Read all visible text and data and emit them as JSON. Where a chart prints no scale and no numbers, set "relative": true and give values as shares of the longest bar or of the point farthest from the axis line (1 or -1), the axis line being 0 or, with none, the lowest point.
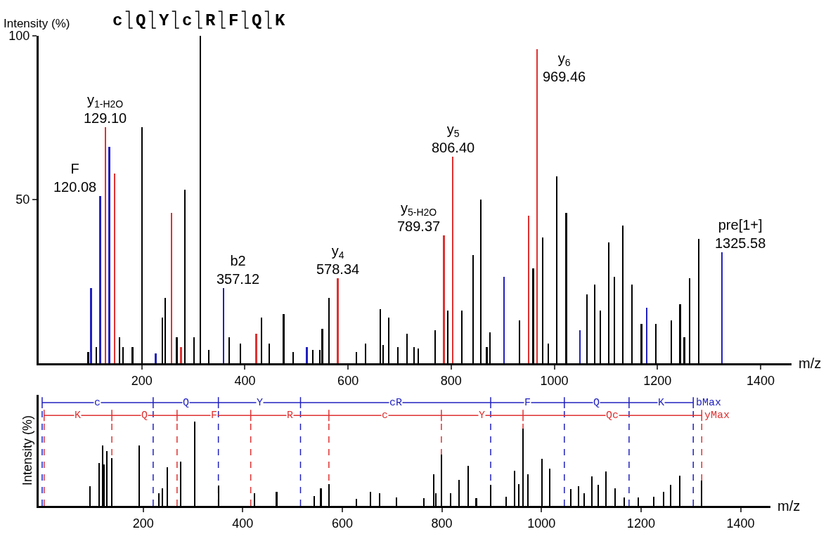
{
  "chart_data": [
    {
      "type": "bar",
      "title": "cQYcRFQK",
      "ylabel": "Intensity (%)",
      "xlabel": "m/z",
      "x": [
        96,
        101.5,
        112,
        119.3,
        129,
        137,
        147,
        157,
        164,
        182,
        200,
        227,
        240,
        245,
        258,
        268,
        276,
        283,
        301,
        313,
        330,
        359,
        369,
        391,
        422,
        432,
        447,
        475,
        493,
        520,
        532,
        545,
        550,
        563,
        580,
        616,
        634,
        662,
        668,
        679,
        697,
        714,
        728,
        736,
        769,
        786,
        793,
        803,
        821,
        842,
        857,
        869,
        875,
        902,
        932,
        950,
        959,
        967,
        977,
        988,
        1005,
        1023,
        1050,
        1063,
        1078,
        1089,
        1106,
        1116,
        1133,
        1151,
        1169,
        1179,
        1197,
        1227,
        1244,
        1252,
        1262,
        1280,
        1325
      ],
      "values": [
        3.5,
        23,
        5,
        51,
        72,
        66,
        58,
        8,
        5,
        5,
        72,
        3,
        14,
        20,
        46,
        8,
        5,
        53,
        8,
        100,
        4,
        23,
        8,
        6,
        9,
        14,
        6,
        15,
        3.5,
        5,
        4,
        4,
        10.5,
        20,
        26,
        3.5,
        6,
        16.5,
        5.5,
        14,
        5,
        9,
        5,
        4.5,
        10,
        39,
        16,
        63,
        16,
        33,
        50,
        5,
        9.5,
        26.5,
        13,
        45,
        29,
        96,
        38.5,
        6,
        57,
        46,
        10,
        21,
        24,
        16,
        37,
        26.5,
        42,
        24,
        12,
        17,
        12,
        13,
        18,
        8,
        26,
        38,
        34
      ],
      "colors": [
        "#000000",
        "#2020c0",
        "#000000",
        "#2020c0",
        "#e03030",
        "#2020c0",
        "#e03030",
        "#000000",
        "#000000",
        "#000000",
        "#000000",
        "#2020c0",
        "#000000",
        "#000000",
        "#e03030",
        "#000000",
        "#e03030",
        "#000000",
        "#000000",
        "#000000",
        "#000000",
        "#2020c0",
        "#000000",
        "#000000",
        "#e03030",
        "#000000",
        "#000000",
        "#000000",
        "#000000",
        "#2020c0",
        "#000000",
        "#000000",
        "#000000",
        "#000000",
        "#e03030",
        "#000000",
        "#000000",
        "#000000",
        "#000000",
        "#000000",
        "#000000",
        "#000000",
        "#000000",
        "#000000",
        "#000000",
        "#e03030",
        "#000000",
        "#e03030",
        "#000000",
        "#000000",
        "#000000",
        "#000000",
        "#000000",
        "#2020c0",
        "#000000",
        "#e03030",
        "#000000",
        "#e03030",
        "#000000",
        "#000000",
        "#000000",
        "#000000",
        "#2020c0",
        "#000000",
        "#000000",
        "#000000",
        "#000000",
        "#000000",
        "#000000",
        "#000000",
        "#000000",
        "#2020c0",
        "#000000",
        "#000000",
        "#000000",
        "#000000",
        "#000000",
        "#000000",
        "#2020c0"
      ],
      "xlim": [
        0,
        1460
      ],
      "xticks": [
        200,
        400,
        600,
        800,
        1000,
        1200,
        1400
      ],
      "ylim": [
        0,
        100
      ],
      "yticks": [
        50,
        100
      ],
      "annotations": [
        {
          "text": "F\n120.08",
          "x": 119.3,
          "y": 51
        },
        {
          "text": "y$_{1-H2O}$\n129.10",
          "x": 129,
          "y": 72
        },
        {
          "text": "b2\n357.12",
          "x": 359,
          "y": 23
        },
        {
          "text": "y$_{4}$\n578.34",
          "x": 580,
          "y": 26
        },
        {
          "text": "y$_{5-H2O}$\n789.37",
          "x": 786,
          "y": 39
        },
        {
          "text": "y$_{5}$\n806.40",
          "x": 803,
          "y": 63
        },
        {
          "text": "y$_{6}$\n969.46",
          "x": 967,
          "y": 96
        },
        {
          "text": "pre[1+]\n1325.58",
          "x": 1325,
          "y": 34
        }
      ]
    },
    {
      "type": "bar",
      "relative": true,
      "ylabel": "Intensity (%)",
      "xlabel": "m/z",
      "xlim": [
        -10,
        1460
      ],
      "xticks": [
        200,
        400,
        600,
        800,
        1000,
        1200,
        1400
      ],
      "series": [
        {
          "color": "#000000",
          "x": [
            92.5,
            111,
            119,
            121,
            127,
            137,
            192,
            231,
            239,
            249,
            275,
            304,
            351,
            423,
            468,
            544,
            557,
            573,
            628,
            656,
            675,
            709,
            764,
            783,
            788,
            799,
            817,
            835,
            853,
            869,
            898,
            929,
            946,
            955,
            963,
            973,
            1001,
            1017,
            1059,
            1075,
            1086,
            1101,
            1114,
            1130,
            1148,
            1166,
            1195,
            1226,
            1245,
            1260,
            1278,
            1322
          ],
          "values": [
            0.23,
            0.51,
            0.72,
            0.49,
            0.65,
            0.57,
            0.72,
            0.15,
            0.21,
            0.46,
            0.53,
            1,
            0.24,
            0.15,
            0.17,
            0.12,
            0.21,
            0.26,
            0.08,
            0.17,
            0.15,
            0.1,
            0.09,
            0.38,
            0.15,
            0.61,
            0.15,
            0.31,
            0.48,
            0.09,
            0.25,
            0.11,
            0.42,
            0.26,
            0.92,
            0.38,
            0.56,
            0.44,
            0.2,
            0.23,
            0.15,
            0.35,
            0.25,
            0.41,
            0.21,
            0.1,
            0.1,
            0.11,
            0.17,
            0.25,
            0.36,
            0.3
          ]
        }
      ],
      "ref_lines": [
        {
          "axis": "x",
          "value": -3,
          "label": "c",
          "color": "#2020c0",
          "line_style": "dashed"
        },
        {
          "axis": "x",
          "value": 220,
          "label": "Q",
          "color": "#2020c0",
          "line_style": "dashed"
        },
        {
          "axis": "x",
          "value": 351,
          "label": "Y",
          "color": "#2020c0",
          "line_style": "dashed"
        },
        {
          "axis": "x",
          "value": 516,
          "label": "cR",
          "color": "#2020c0",
          "line_style": "dashed"
        },
        {
          "axis": "x",
          "value": 898,
          "label": "F",
          "color": "#2020c0",
          "line_style": "dashed"
        },
        {
          "axis": "x",
          "value": 1046,
          "label": "Q",
          "color": "#2020c0",
          "line_style": "dashed"
        },
        {
          "axis": "x",
          "value": 1176,
          "label": "K",
          "color": "#2020c0",
          "line_style": "dashed"
        },
        {
          "axis": "x",
          "value": 1305,
          "label": "bMax",
          "color": "#2020c0",
          "line_style": "dashed"
        },
        {
          "axis": "x",
          "value": 1,
          "label": "K",
          "color": "#e03030",
          "line_style": "dashed"
        },
        {
          "axis": "x",
          "value": 137,
          "label": "Q",
          "color": "#e03030",
          "line_style": "dashed"
        },
        {
          "axis": "x",
          "value": 268,
          "label": "F",
          "color": "#e03030",
          "line_style": "dashed"
        },
        {
          "axis": "x",
          "value": 416,
          "label": "R",
          "color": "#e03030",
          "line_style": "dashed"
        },
        {
          "axis": "x",
          "value": 573,
          "label": "c",
          "color": "#e03030",
          "line_style": "dashed"
        },
        {
          "axis": "x",
          "value": 799,
          "label": "Y",
          "color": "#e03030",
          "line_style": "dashed"
        },
        {
          "axis": "x",
          "value": 963,
          "label": "Qc",
          "color": "#e03030",
          "line_style": "dashed"
        },
        {
          "axis": "x",
          "value": 1322,
          "label": "yMax",
          "color": "#e03030",
          "line_style": "dashed"
        }
      ]
    }
  ]
}
